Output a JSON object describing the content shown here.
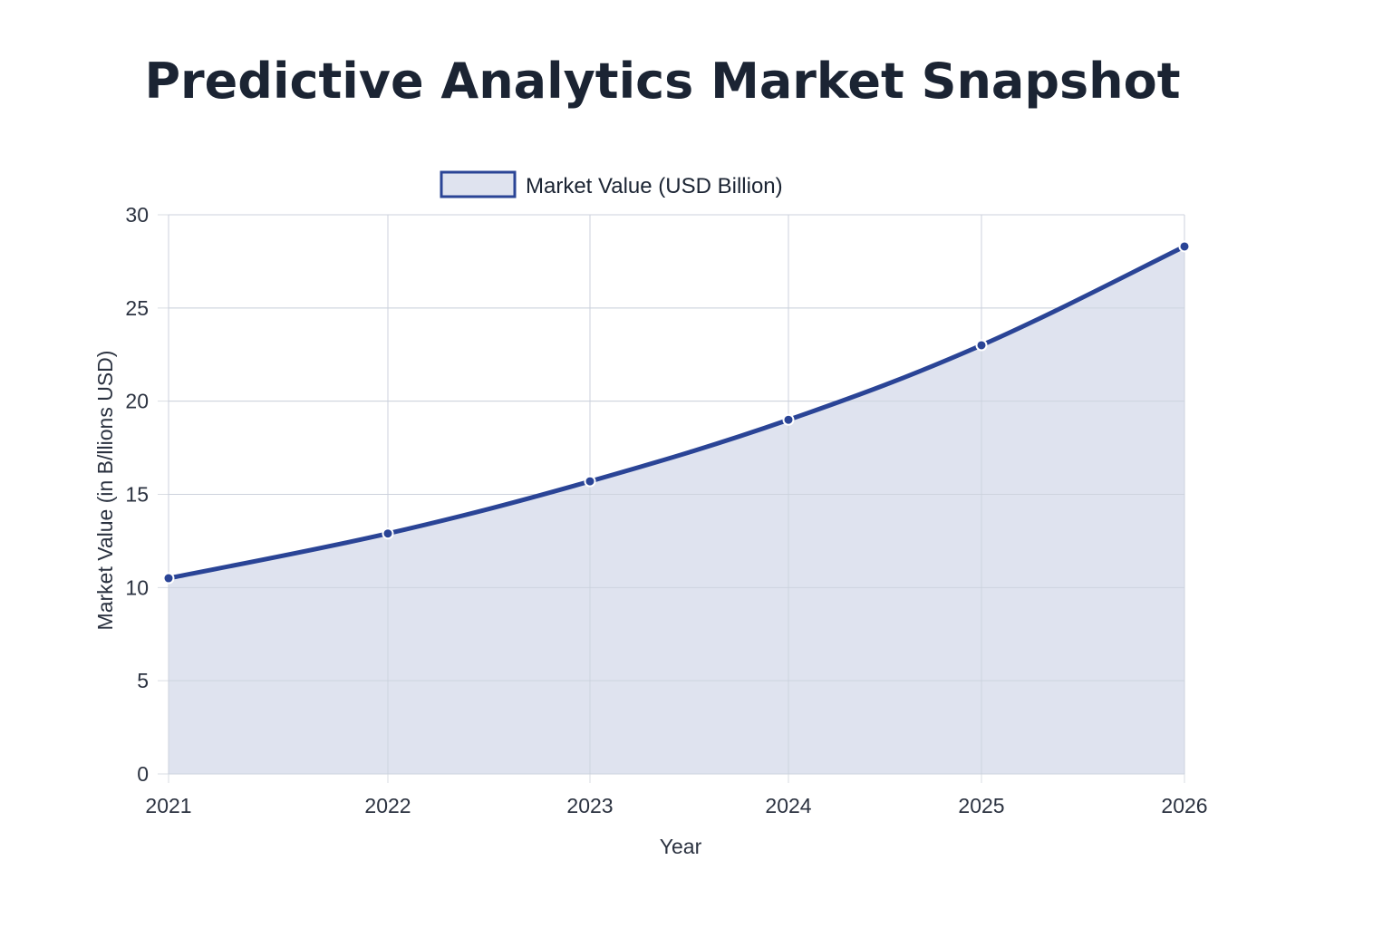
{
  "chart_data": {
    "type": "area",
    "title": "Predictive Analytics Market Snapshot",
    "xlabel": "Year",
    "ylabel": "Market Value (in B/llions USD)",
    "categories": [
      "2021",
      "2022",
      "2023",
      "2024",
      "2025",
      "2026"
    ],
    "series": [
      {
        "name": "Market Value (USD Billion)",
        "values": [
          10.5,
          12.9,
          15.7,
          19.0,
          23.0,
          28.3
        ]
      }
    ],
    "ylim": [
      0,
      30
    ],
    "yticks": [
      "0",
      "5",
      "10",
      "15",
      "20",
      "25",
      "30"
    ],
    "grid": true,
    "legend_position": "top-center",
    "colors": {
      "line": "#2a4496",
      "fill": "#dfe3ef",
      "grid": "#d9dde3"
    }
  }
}
